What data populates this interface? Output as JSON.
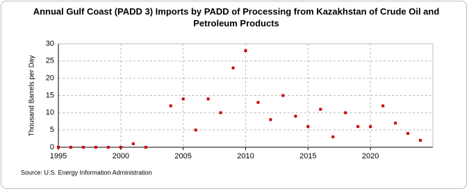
{
  "chart_data": {
    "type": "scatter",
    "title": "Annual Gulf Coast (PADD 3) Imports by PADD of Processing from Kazakhstan of Crude Oil and Petroleum Products",
    "y_label": "Thousand Barrels per Day",
    "source": "Source: U.S. Energy Information Administration",
    "x": [
      1995,
      1996,
      1997,
      1998,
      1999,
      2000,
      2001,
      2002,
      2004,
      2005,
      2006,
      2007,
      2008,
      2009,
      2010,
      2011,
      2012,
      2013,
      2014,
      2015,
      2016,
      2017,
      2018,
      2019,
      2020,
      2021,
      2022,
      2023,
      2024
    ],
    "values": [
      0,
      0,
      0,
      0,
      0,
      0,
      1,
      0,
      12,
      14,
      5,
      14,
      10,
      23,
      28,
      13,
      8,
      15,
      9,
      6,
      11,
      3,
      10,
      6,
      6,
      12,
      7,
      4,
      2
    ],
    "color": "#cc0000",
    "xlim": [
      1995,
      2025
    ],
    "xticks": [
      1995,
      2000,
      2005,
      2010,
      2015,
      2020
    ],
    "ylim": [
      0,
      30
    ],
    "yticks": [
      0,
      5,
      10,
      15,
      20,
      25,
      30
    ],
    "grid": true
  }
}
